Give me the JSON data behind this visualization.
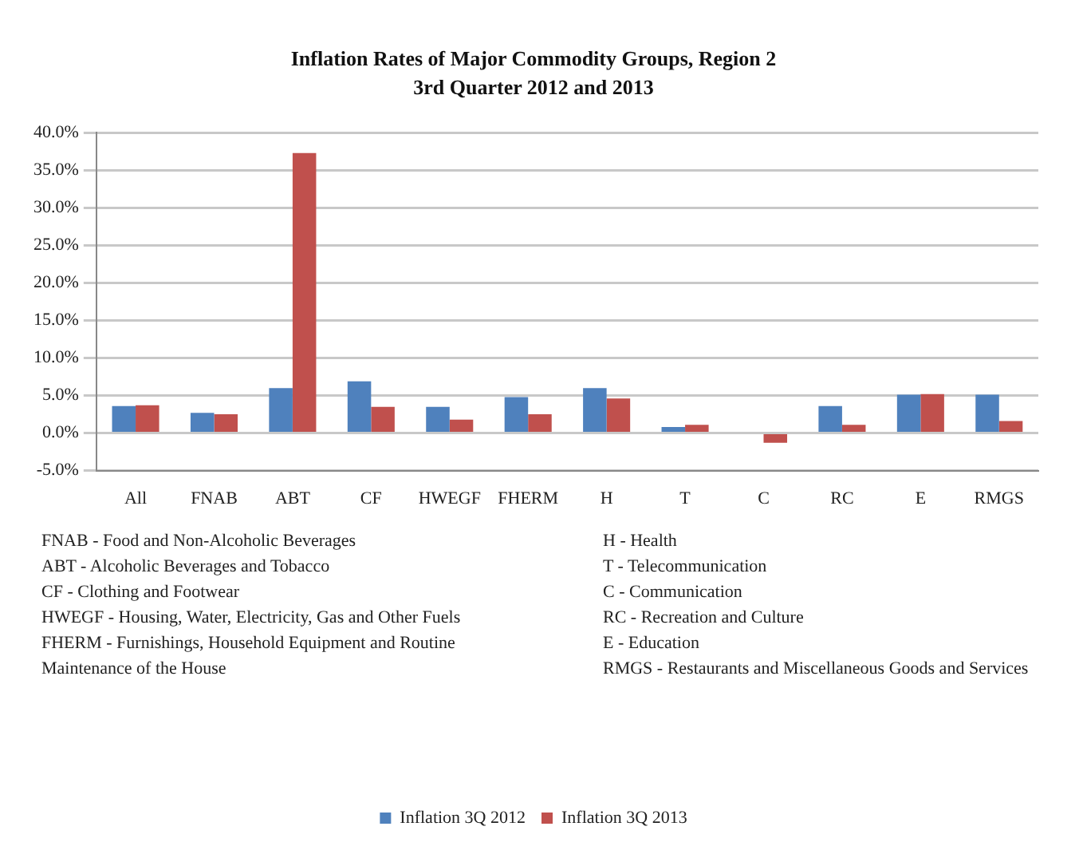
{
  "chart_data": {
    "type": "bar",
    "title": "Inflation Rates of Major Commodity Groups, Region 2",
    "subtitle": "3rd Quarter 2012 and 2013",
    "categories": [
      "All",
      "FNAB",
      "ABT",
      "CF",
      "HWEGF",
      "FHERM",
      "H",
      "T",
      "C",
      "RC",
      "E",
      "RMGS"
    ],
    "series": [
      {
        "name": "Inflation 3Q 2012",
        "color": "#4f81bd",
        "values": [
          3.6,
          2.7,
          6.0,
          6.9,
          3.5,
          4.8,
          6.0,
          0.8,
          0.0,
          3.6,
          5.1,
          5.1
        ]
      },
      {
        "name": "Inflation 3Q 2013",
        "color": "#c0504d",
        "values": [
          3.7,
          2.5,
          37.3,
          3.5,
          1.8,
          2.5,
          4.6,
          1.1,
          -1.3,
          1.1,
          5.2,
          1.6
        ]
      }
    ],
    "ylim": [
      -5,
      40
    ],
    "yticks": [
      {
        "value": -5,
        "label": "-5.0%"
      },
      {
        "value": 0,
        "label": "0.0%"
      },
      {
        "value": 5,
        "label": "5.0%"
      },
      {
        "value": 10,
        "label": "10.0%"
      },
      {
        "value": 15,
        "label": "15.0%"
      },
      {
        "value": 20,
        "label": "20.0%"
      },
      {
        "value": 25,
        "label": "25.0%"
      },
      {
        "value": 30,
        "label": "30.0%"
      },
      {
        "value": 35,
        "label": "35.0%"
      },
      {
        "value": 40,
        "label": "40.0%"
      }
    ],
    "grid": "y",
    "legend": "bottom",
    "annotations": [
      "FNAB - Food and Non-Alcoholic Beverages",
      "ABT - Alcoholic Beverages and Tobacco",
      "CF - Clothing and Footwear",
      "HWEGF - Housing, Water, Electricity, Gas and Other Fuels",
      "FHERM - Furnishings, Household Equipment and Routine Maintenance of the House",
      "H - Health",
      "T - Telecommunication",
      "C - Communication",
      "RC - Recreation and Culture",
      "E - Education",
      "RMGS - Restaurants and Miscellaneous Goods and Services"
    ]
  }
}
